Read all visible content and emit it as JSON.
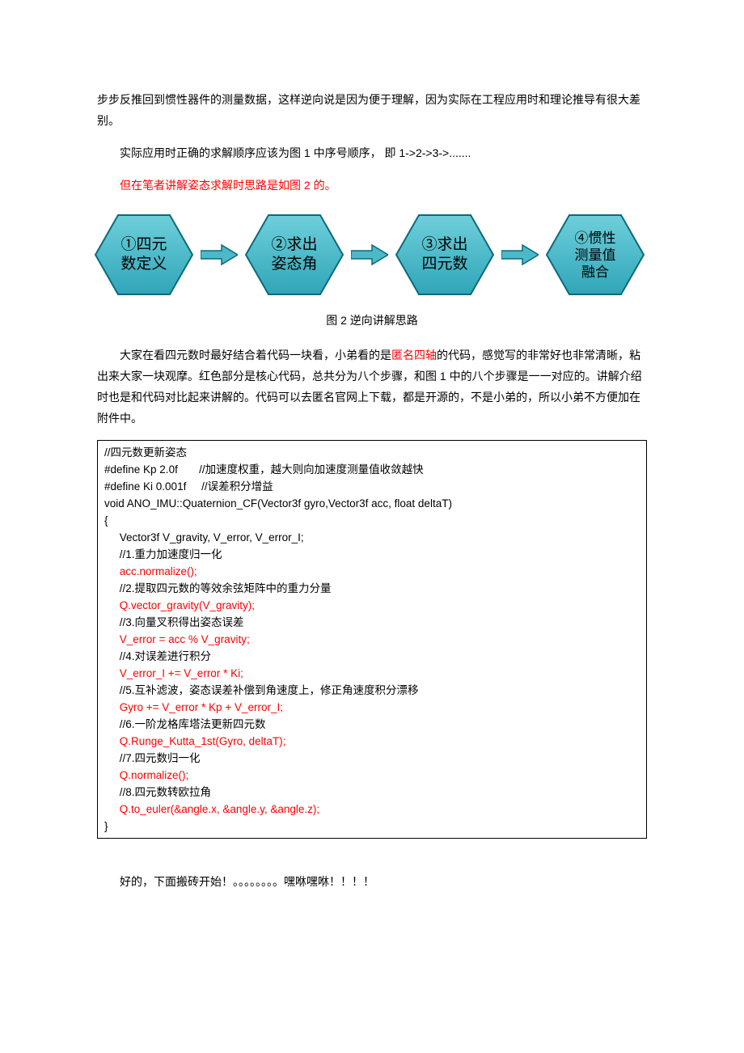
{
  "text": {
    "p1": "步步反推回到惯性器件的测量数据，这样逆向说是因为便于理解，因为实际在工程应用时和理论推导有很大差别。",
    "p2": "实际应用时正确的求解顺序应该为图 1 中序号顺序， 即 1->2->3->.......",
    "p3": "但在笔者讲解姿态求解时思路是如图 2 的。",
    "p4a": "大家在看四元数时最好结合着代码一块看，小弟看的是",
    "p4_red": "匿名四轴",
    "p4b": "的代码，感觉写的非常好也非常清晰，粘出来大家一块观摩。红色部分是核心代码，总共分为八个步骤，和图 1 中的八个步骤是一一对应的。讲解介绍时也是和代码对比起来讲解的。代码可以去匿名官网上下载，都是开源的，不是小弟的，所以小弟不方便加在附件中。",
    "p5": "好的，下面搬砖开始！。。。。。。。。嘿咻嘿咻！！！！"
  },
  "flow": {
    "nodes": [
      "①四元\n数定义",
      "②求出\n姿态角",
      "③求出\n四元数",
      "④惯性\n测量值\n融合"
    ],
    "caption": "图 2  逆向讲解思路",
    "hex_fill": "#4bb9c8",
    "hex_stroke": "#0a6a7d",
    "arrow_fill": "#4bb9c8",
    "arrow_stroke": "#0a6a7d"
  },
  "code": {
    "lines": [
      {
        "t": "//四元数更新姿态",
        "cls": ""
      },
      {
        "t": "#define Kp 2.0f       //加速度权重，越大则向加速度测量值收敛越快",
        "cls": ""
      },
      {
        "t": "#define Ki 0.001f     //误差积分增益",
        "cls": ""
      },
      {
        "t": "void ANO_IMU::Quaternion_CF(Vector3f gyro,Vector3f acc, float deltaT)",
        "cls": ""
      },
      {
        "t": "{",
        "cls": ""
      },
      {
        "t": "     Vector3f V_gravity, V_error, V_error_I;",
        "cls": ""
      },
      {
        "t": "     //1.重力加速度归一化",
        "cls": ""
      },
      {
        "t": "     acc.normalize();",
        "cls": "hl"
      },
      {
        "t": "     //2.提取四元数的等效余弦矩阵中的重力分量",
        "cls": ""
      },
      {
        "t": "     Q.vector_gravity(V_gravity);",
        "cls": "hl"
      },
      {
        "t": "     //3.向量叉积得出姿态误差",
        "cls": ""
      },
      {
        "t": "     V_error = acc % V_gravity;",
        "cls": "hl"
      },
      {
        "t": "     //4.对误差进行积分",
        "cls": ""
      },
      {
        "t": "     V_error_I += V_error * Ki;",
        "cls": "hl"
      },
      {
        "t": "     //5.互补滤波，姿态误差补偿到角速度上，修正角速度积分漂移",
        "cls": ""
      },
      {
        "t": "     Gyro += V_error * Kp + V_error_I;",
        "cls": "hl"
      },
      {
        "t": "     //6.一阶龙格库塔法更新四元数",
        "cls": ""
      },
      {
        "t": "     Q.Runge_Kutta_1st(Gyro, deltaT);",
        "cls": "hl"
      },
      {
        "t": "     //7.四元数归一化",
        "cls": ""
      },
      {
        "t": "     Q.normalize();",
        "cls": "hl"
      },
      {
        "t": "     //8.四元数转欧拉角",
        "cls": ""
      },
      {
        "t": "     Q.to_euler(&angle.x, &angle.y, &angle.z);",
        "cls": "hl"
      },
      {
        "t": "}",
        "cls": ""
      }
    ]
  }
}
